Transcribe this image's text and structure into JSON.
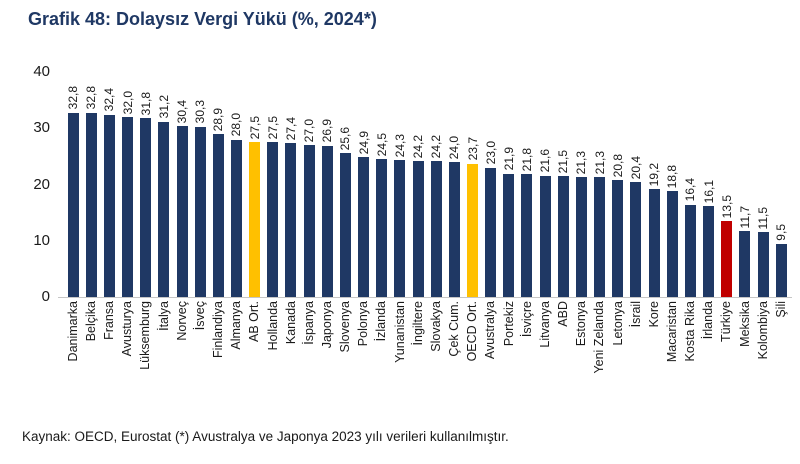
{
  "title": "Grafik 48: Dolaysız Vergi Yükü (%, 2024*)",
  "source_note": "Kaynak: OECD, Eurostat (*) Avustralya ve Japonya 2023 yılı verileri kullanılmıştır.",
  "colors": {
    "title": "#1f3864",
    "bar_default": "#1f3864",
    "bar_average_highlight": "#ffc000",
    "bar_turkiye_highlight": "#c00000",
    "axis_line": "#c6c6c6",
    "text": "#1a1a1a"
  },
  "chart_data": {
    "type": "bar",
    "title": "Grafik 48: Dolaysız Vergi Yükü (%, 2024*)",
    "xlabel": "",
    "ylabel": "",
    "ylim": [
      0,
      40
    ],
    "yticks": [
      0,
      10,
      20,
      30,
      40
    ],
    "grid": false,
    "legend": "none",
    "value_label_style": "rotated 90deg, comma decimal separator",
    "categories": [
      "Danimarka",
      "Belçika",
      "Fransa",
      "Avusturya",
      "Lüksemburg",
      "İtalya",
      "Norveç",
      "İsveç",
      "Finlandiya",
      "Almanya",
      "AB Ort.",
      "Hollanda",
      "Kanada",
      "İspanya",
      "Japonya",
      "Slovenya",
      "Polonya",
      "İzlanda",
      "Yunanistan",
      "İngiltere",
      "Slovakya",
      "Çek Cum.",
      "OECD Ort.",
      "Avustralya",
      "Portekiz",
      "İsviçre",
      "Litvanya",
      "ABD",
      "Estonya",
      "Yeni Zelanda",
      "Letonya",
      "İsrail",
      "Kore",
      "Macaristan",
      "Kosta Rika",
      "İrlanda",
      "Türkiye",
      "Meksika",
      "Kolombiya",
      "Şili"
    ],
    "values": [
      32.8,
      32.8,
      32.4,
      32.0,
      31.8,
      31.2,
      30.4,
      30.3,
      28.9,
      28.0,
      27.5,
      27.5,
      27.4,
      27.0,
      26.9,
      25.6,
      24.9,
      24.5,
      24.3,
      24.2,
      24.2,
      24.0,
      23.7,
      23.0,
      21.9,
      21.8,
      21.6,
      21.5,
      21.3,
      21.3,
      20.8,
      20.4,
      19.2,
      18.8,
      16.4,
      16.1,
      13.5,
      11.7,
      11.5,
      9.5
    ],
    "display_values": [
      "32,8",
      "32,8",
      "32,4",
      "32,0",
      "31,8",
      "31,2",
      "30,4",
      "30,3",
      "28,9",
      "28,0",
      "27,5",
      "27,5",
      "27,4",
      "27,0",
      "26,9",
      "25,6",
      "24,9",
      "24,5",
      "24,3",
      "24,2",
      "24,2",
      "24,0",
      "23,7",
      "23,0",
      "21,9",
      "21,8",
      "21,6",
      "21,5",
      "21,3",
      "21,3",
      "20,8",
      "20,4",
      "19,2",
      "18,8",
      "16,4",
      "16,1",
      "13,5",
      "11,7",
      "11,5",
      "9,5"
    ],
    "highlights": {
      "AB Ort.": "#ffc000",
      "OECD Ort.": "#ffc000",
      "Türkiye": "#c00000"
    }
  }
}
